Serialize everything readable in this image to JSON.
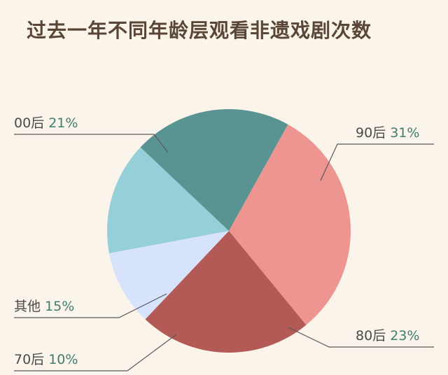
{
  "title": "过去一年不同年龄层观看非遗戏剧次数",
  "chart_data": {
    "type": "pie",
    "title": "过去一年不同年龄层观看非遗戏剧次数",
    "slices": [
      {
        "name": "90后",
        "pct_label": "31%",
        "value": 31,
        "color": "#ee9592"
      },
      {
        "name": "80后",
        "pct_label": "23%",
        "value": 23,
        "color": "#b35a56"
      },
      {
        "name": "70后",
        "pct_label": "10%",
        "value": 10,
        "color": "#d7e2fb"
      },
      {
        "name": "其他",
        "pct_label": "15%",
        "value": 15,
        "color": "#95d0d9"
      },
      {
        "name": "00后",
        "pct_label": "21%",
        "value": 21,
        "color": "#5a9492"
      }
    ]
  },
  "colors": {
    "background": "#fbf4ea",
    "title": "#5a4637",
    "leader_line": "#5a5a5a",
    "percent_text": "#3f7d6e"
  }
}
